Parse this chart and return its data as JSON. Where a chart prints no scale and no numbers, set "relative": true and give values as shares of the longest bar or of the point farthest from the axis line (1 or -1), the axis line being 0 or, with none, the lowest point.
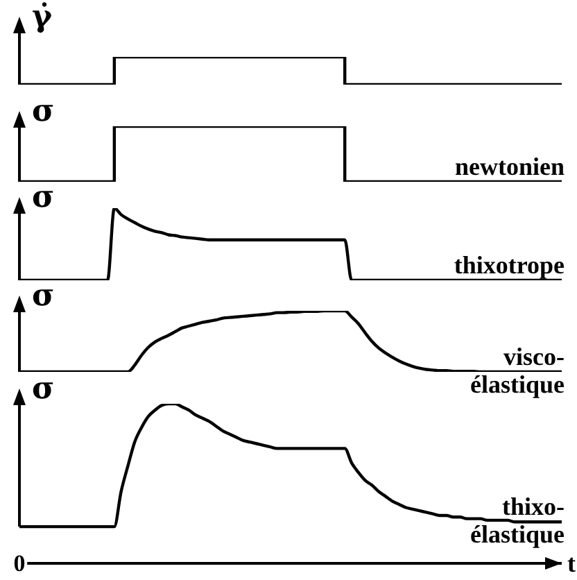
{
  "chart_data": [
    {
      "type": "step",
      "ylabel": "γ̇",
      "relative": true,
      "tick_labels": false,
      "categories": [
        null,
        null,
        null,
        null,
        null,
        null,
        null,
        null,
        null,
        null,
        null,
        null,
        null,
        null,
        null,
        null,
        null,
        null,
        null,
        null,
        null,
        null,
        null,
        null,
        null,
        null,
        null,
        null,
        null,
        null,
        null,
        null,
        null,
        null,
        null,
        null,
        null,
        null,
        null,
        null,
        null,
        null,
        null,
        null,
        null,
        null,
        null,
        null,
        null,
        null,
        null,
        null,
        null,
        null,
        null,
        null,
        null,
        null,
        null,
        null,
        null,
        null,
        null,
        null,
        null,
        null,
        null,
        null,
        null,
        null,
        null,
        null,
        null,
        null,
        null,
        null,
        null,
        null,
        null,
        null,
        null
      ],
      "series": [
        {
          "color": "#000000",
          "values": [
            0,
            0,
            0,
            0,
            0,
            0,
            0,
            0,
            0,
            0,
            0,
            0,
            0,
            0,
            1,
            1,
            1,
            1,
            1,
            1,
            1,
            1,
            1,
            1,
            1,
            1,
            1,
            1,
            1,
            1,
            1,
            1,
            1,
            1,
            1,
            1,
            1,
            1,
            1,
            1,
            1,
            1,
            1,
            1,
            1,
            1,
            1,
            1,
            0,
            0,
            0,
            0,
            0,
            0,
            0,
            0,
            0,
            0,
            0,
            0,
            0,
            0,
            0,
            0,
            0,
            0,
            0,
            0,
            0,
            0,
            0,
            0,
            0,
            0,
            0,
            0,
            0,
            0,
            0,
            0,
            0
          ]
        }
      ]
    },
    {
      "type": "step",
      "ylabel": "σ",
      "relative": true,
      "tick_labels": false,
      "categories": [
        null,
        null,
        null,
        null,
        null,
        null,
        null,
        null,
        null,
        null,
        null,
        null,
        null,
        null,
        null,
        null,
        null,
        null,
        null,
        null,
        null,
        null,
        null,
        null,
        null,
        null,
        null,
        null,
        null,
        null,
        null,
        null,
        null,
        null,
        null,
        null,
        null,
        null,
        null,
        null,
        null,
        null,
        null,
        null,
        null,
        null,
        null,
        null,
        null,
        null,
        null,
        null,
        null,
        null,
        null,
        null,
        null,
        null,
        null,
        null,
        null,
        null,
        null,
        null,
        null,
        null,
        null,
        null,
        null,
        null,
        null,
        null,
        null,
        null,
        null,
        null,
        null,
        null,
        null,
        null,
        null
      ],
      "series": [
        {
          "name": "newtonien",
          "color": "#000000",
          "values": [
            0,
            0,
            0,
            0,
            0,
            0,
            0,
            0,
            0,
            0,
            0,
            0,
            0,
            0,
            1,
            1,
            1,
            1,
            1,
            1,
            1,
            1,
            1,
            1,
            1,
            1,
            1,
            1,
            1,
            1,
            1,
            1,
            1,
            1,
            1,
            1,
            1,
            1,
            1,
            1,
            1,
            1,
            1,
            1,
            1,
            1,
            1,
            1,
            0,
            0,
            0,
            0,
            0,
            0,
            0,
            0,
            0,
            0,
            0,
            0,
            0,
            0,
            0,
            0,
            0,
            0,
            0,
            0,
            0,
            0,
            0,
            0,
            0,
            0,
            0,
            0,
            0,
            0,
            0,
            0,
            0
          ]
        }
      ]
    },
    {
      "type": "line",
      "ylabel": "σ",
      "relative": true,
      "tick_labels": false,
      "categories": [
        null,
        null,
        null,
        null,
        null,
        null,
        null,
        null,
        null,
        null,
        null,
        null,
        null,
        null,
        null,
        null,
        null,
        null,
        null,
        null,
        null,
        null,
        null,
        null,
        null,
        null,
        null,
        null,
        null,
        null,
        null,
        null,
        null,
        null,
        null,
        null,
        null,
        null,
        null,
        null,
        null,
        null,
        null,
        null,
        null,
        null,
        null,
        null,
        null,
        null,
        null,
        null,
        null,
        null,
        null,
        null,
        null,
        null,
        null,
        null,
        null,
        null,
        null,
        null,
        null,
        null,
        null,
        null,
        null,
        null,
        null,
        null,
        null,
        null,
        null,
        null,
        null,
        null,
        null,
        null,
        null
      ],
      "series": [
        {
          "name": "thixotrope",
          "color": "#000000",
          "values": [
            0,
            0,
            0,
            0,
            0,
            0,
            0,
            0,
            0,
            0,
            0,
            0,
            0,
            0,
            1,
            0.91,
            0.85,
            0.8,
            0.75,
            0.71,
            0.68,
            0.66,
            0.63,
            0.62,
            0.6,
            0.59,
            0.58,
            0.57,
            0.56,
            0.56,
            0.56,
            0.56,
            0.56,
            0.56,
            0.56,
            0.56,
            0.56,
            0.56,
            0.56,
            0.56,
            0.56,
            0.56,
            0.56,
            0.56,
            0.56,
            0.56,
            0.56,
            0.56,
            0.56,
            0,
            0,
            0,
            0,
            0,
            0,
            0,
            0,
            0,
            0,
            0,
            0,
            0,
            0,
            0,
            0,
            0,
            0,
            0,
            0,
            0,
            0,
            0,
            0,
            0,
            0,
            0,
            0,
            0,
            0,
            0,
            0
          ]
        }
      ]
    },
    {
      "type": "line",
      "ylabel": "σ",
      "relative": true,
      "tick_labels": false,
      "categories": [
        null,
        null,
        null,
        null,
        null,
        null,
        null,
        null,
        null,
        null,
        null,
        null,
        null,
        null,
        null,
        null,
        null,
        null,
        null,
        null,
        null,
        null,
        null,
        null,
        null,
        null,
        null,
        null,
        null,
        null,
        null,
        null,
        null,
        null,
        null,
        null,
        null,
        null,
        null,
        null,
        null,
        null,
        null,
        null,
        null,
        null,
        null,
        null,
        null,
        null,
        null,
        null,
        null,
        null,
        null,
        null,
        null,
        null,
        null,
        null,
        null,
        null,
        null,
        null,
        null,
        null,
        null,
        null,
        null,
        null,
        null,
        null,
        null,
        null,
        null,
        null,
        null,
        null,
        null,
        null,
        null
      ],
      "series": [
        {
          "name": "visco-élastique",
          "color": "#000000",
          "values": [
            0,
            0,
            0,
            0,
            0,
            0,
            0,
            0,
            0,
            0,
            0,
            0,
            0,
            0,
            0,
            0,
            0,
            0.11,
            0.27,
            0.4,
            0.49,
            0.55,
            0.6,
            0.66,
            0.72,
            0.75,
            0.78,
            0.81,
            0.83,
            0.85,
            0.88,
            0.89,
            0.9,
            0.91,
            0.92,
            0.93,
            0.94,
            0.95,
            0.97,
            0.97,
            0.98,
            0.98,
            0.99,
            0.99,
            0.99,
            1,
            1,
            1,
            1,
            0.9,
            0.79,
            0.64,
            0.5,
            0.39,
            0.31,
            0.24,
            0.18,
            0.13,
            0.09,
            0.06,
            0.04,
            0.03,
            0.02,
            0.02,
            0.01,
            0.01,
            0.01,
            0.01,
            0,
            0,
            0,
            0,
            0,
            0,
            0,
            0,
            0,
            0,
            0,
            0,
            0
          ]
        }
      ]
    },
    {
      "type": "line",
      "ylabel": "σ",
      "xlabel": "t",
      "relative": true,
      "annotations": [
        "0"
      ],
      "categories": [
        null,
        null,
        null,
        null,
        null,
        null,
        null,
        null,
        null,
        null,
        null,
        null,
        null,
        null,
        null,
        null,
        null,
        null,
        null,
        null,
        null,
        null,
        null,
        null,
        null,
        null,
        null,
        null,
        null,
        null,
        null,
        null,
        null,
        null,
        null,
        null,
        null,
        null,
        null,
        null,
        null,
        null,
        null,
        null,
        null,
        null,
        null,
        null,
        null,
        null,
        null,
        null,
        null,
        null,
        null,
        null,
        null,
        null,
        null,
        null,
        null,
        null,
        null,
        null,
        null,
        null,
        null,
        null,
        null,
        null,
        null,
        null,
        null,
        null,
        null,
        null,
        null,
        null,
        null,
        null,
        null
      ],
      "series": [
        {
          "name": "thixo-élastique",
          "color": "#000000",
          "values": [
            0.23,
            0.23,
            0.23,
            0.23,
            0.23,
            0.23,
            0.23,
            0.23,
            0.23,
            0.23,
            0.23,
            0.23,
            0.23,
            0.23,
            0.23,
            0.45,
            0.61,
            0.76,
            0.85,
            0.92,
            0.96,
            0.99,
            1,
            1,
            0.98,
            0.96,
            0.93,
            0.91,
            0.89,
            0.86,
            0.83,
            0.81,
            0.79,
            0.77,
            0.76,
            0.75,
            0.74,
            0.73,
            0.72,
            0.72,
            0.72,
            0.72,
            0.72,
            0.72,
            0.72,
            0.72,
            0.72,
            0.72,
            0.72,
            0.63,
            0.57,
            0.52,
            0.49,
            0.45,
            0.42,
            0.39,
            0.37,
            0.35,
            0.34,
            0.33,
            0.32,
            0.31,
            0.3,
            0.3,
            0.29,
            0.29,
            0.28,
            0.28,
            0.28,
            0.27,
            0.27,
            0.27,
            0.27,
            0.26,
            0.26,
            0.26,
            0.26,
            0.26,
            0.26,
            0.26,
            0.26
          ]
        }
      ]
    }
  ]
}
